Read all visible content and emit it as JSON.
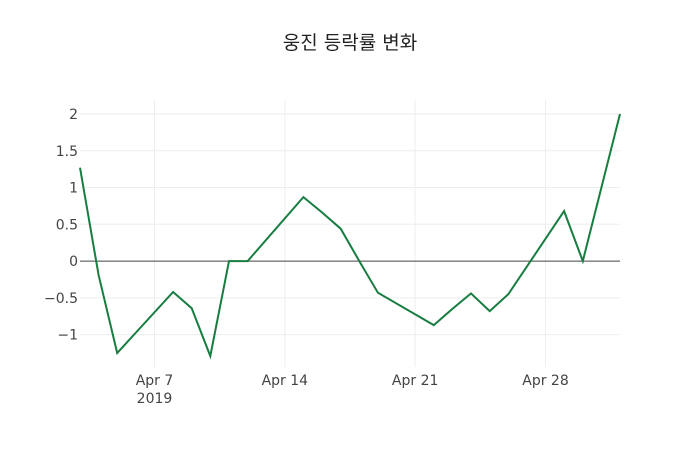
{
  "chart_data": {
    "type": "line",
    "title": "웅진 등락률 변화",
    "xlabel": "",
    "ylabel": "",
    "x": [
      "2019-04-03",
      "2019-04-04",
      "2019-04-05",
      "2019-04-08",
      "2019-04-09",
      "2019-04-10",
      "2019-04-11",
      "2019-04-12",
      "2019-04-15",
      "2019-04-16",
      "2019-04-17",
      "2019-04-18",
      "2019-04-19",
      "2019-04-22",
      "2019-04-23",
      "2019-04-24",
      "2019-04-25",
      "2019-04-26",
      "2019-04-29",
      "2019-04-30",
      "2019-05-02"
    ],
    "series": [
      {
        "name": "등락률",
        "color": "#177d40",
        "values": [
          1.27,
          -0.19,
          -1.25,
          -0.42,
          -0.64,
          -1.29,
          0,
          0,
          0.87,
          0.66,
          0.44,
          0.0,
          -0.43,
          -0.87,
          -0.65,
          -0.44,
          -0.68,
          -0.45,
          0.68,
          0,
          2.0
        ]
      }
    ],
    "yticks": [
      2,
      1.5,
      1,
      0.5,
      0,
      -0.5,
      -1
    ],
    "ytick_labels": [
      "2",
      "1.5",
      "1",
      "0.5",
      "0",
      "−0.5",
      "−1"
    ],
    "xticks": [
      "2019-04-07",
      "2019-04-14",
      "2019-04-21",
      "2019-04-28"
    ],
    "xtick_labels": [
      "Apr 7",
      "Apr 14",
      "Apr 21",
      "Apr 28"
    ],
    "xtick_sublabel": "2019",
    "ylim": [
      -1.44,
      2.19
    ],
    "xlim": [
      "2019-04-03",
      "2019-05-02"
    ],
    "grid": true,
    "zeroline": true,
    "legend": "none"
  }
}
